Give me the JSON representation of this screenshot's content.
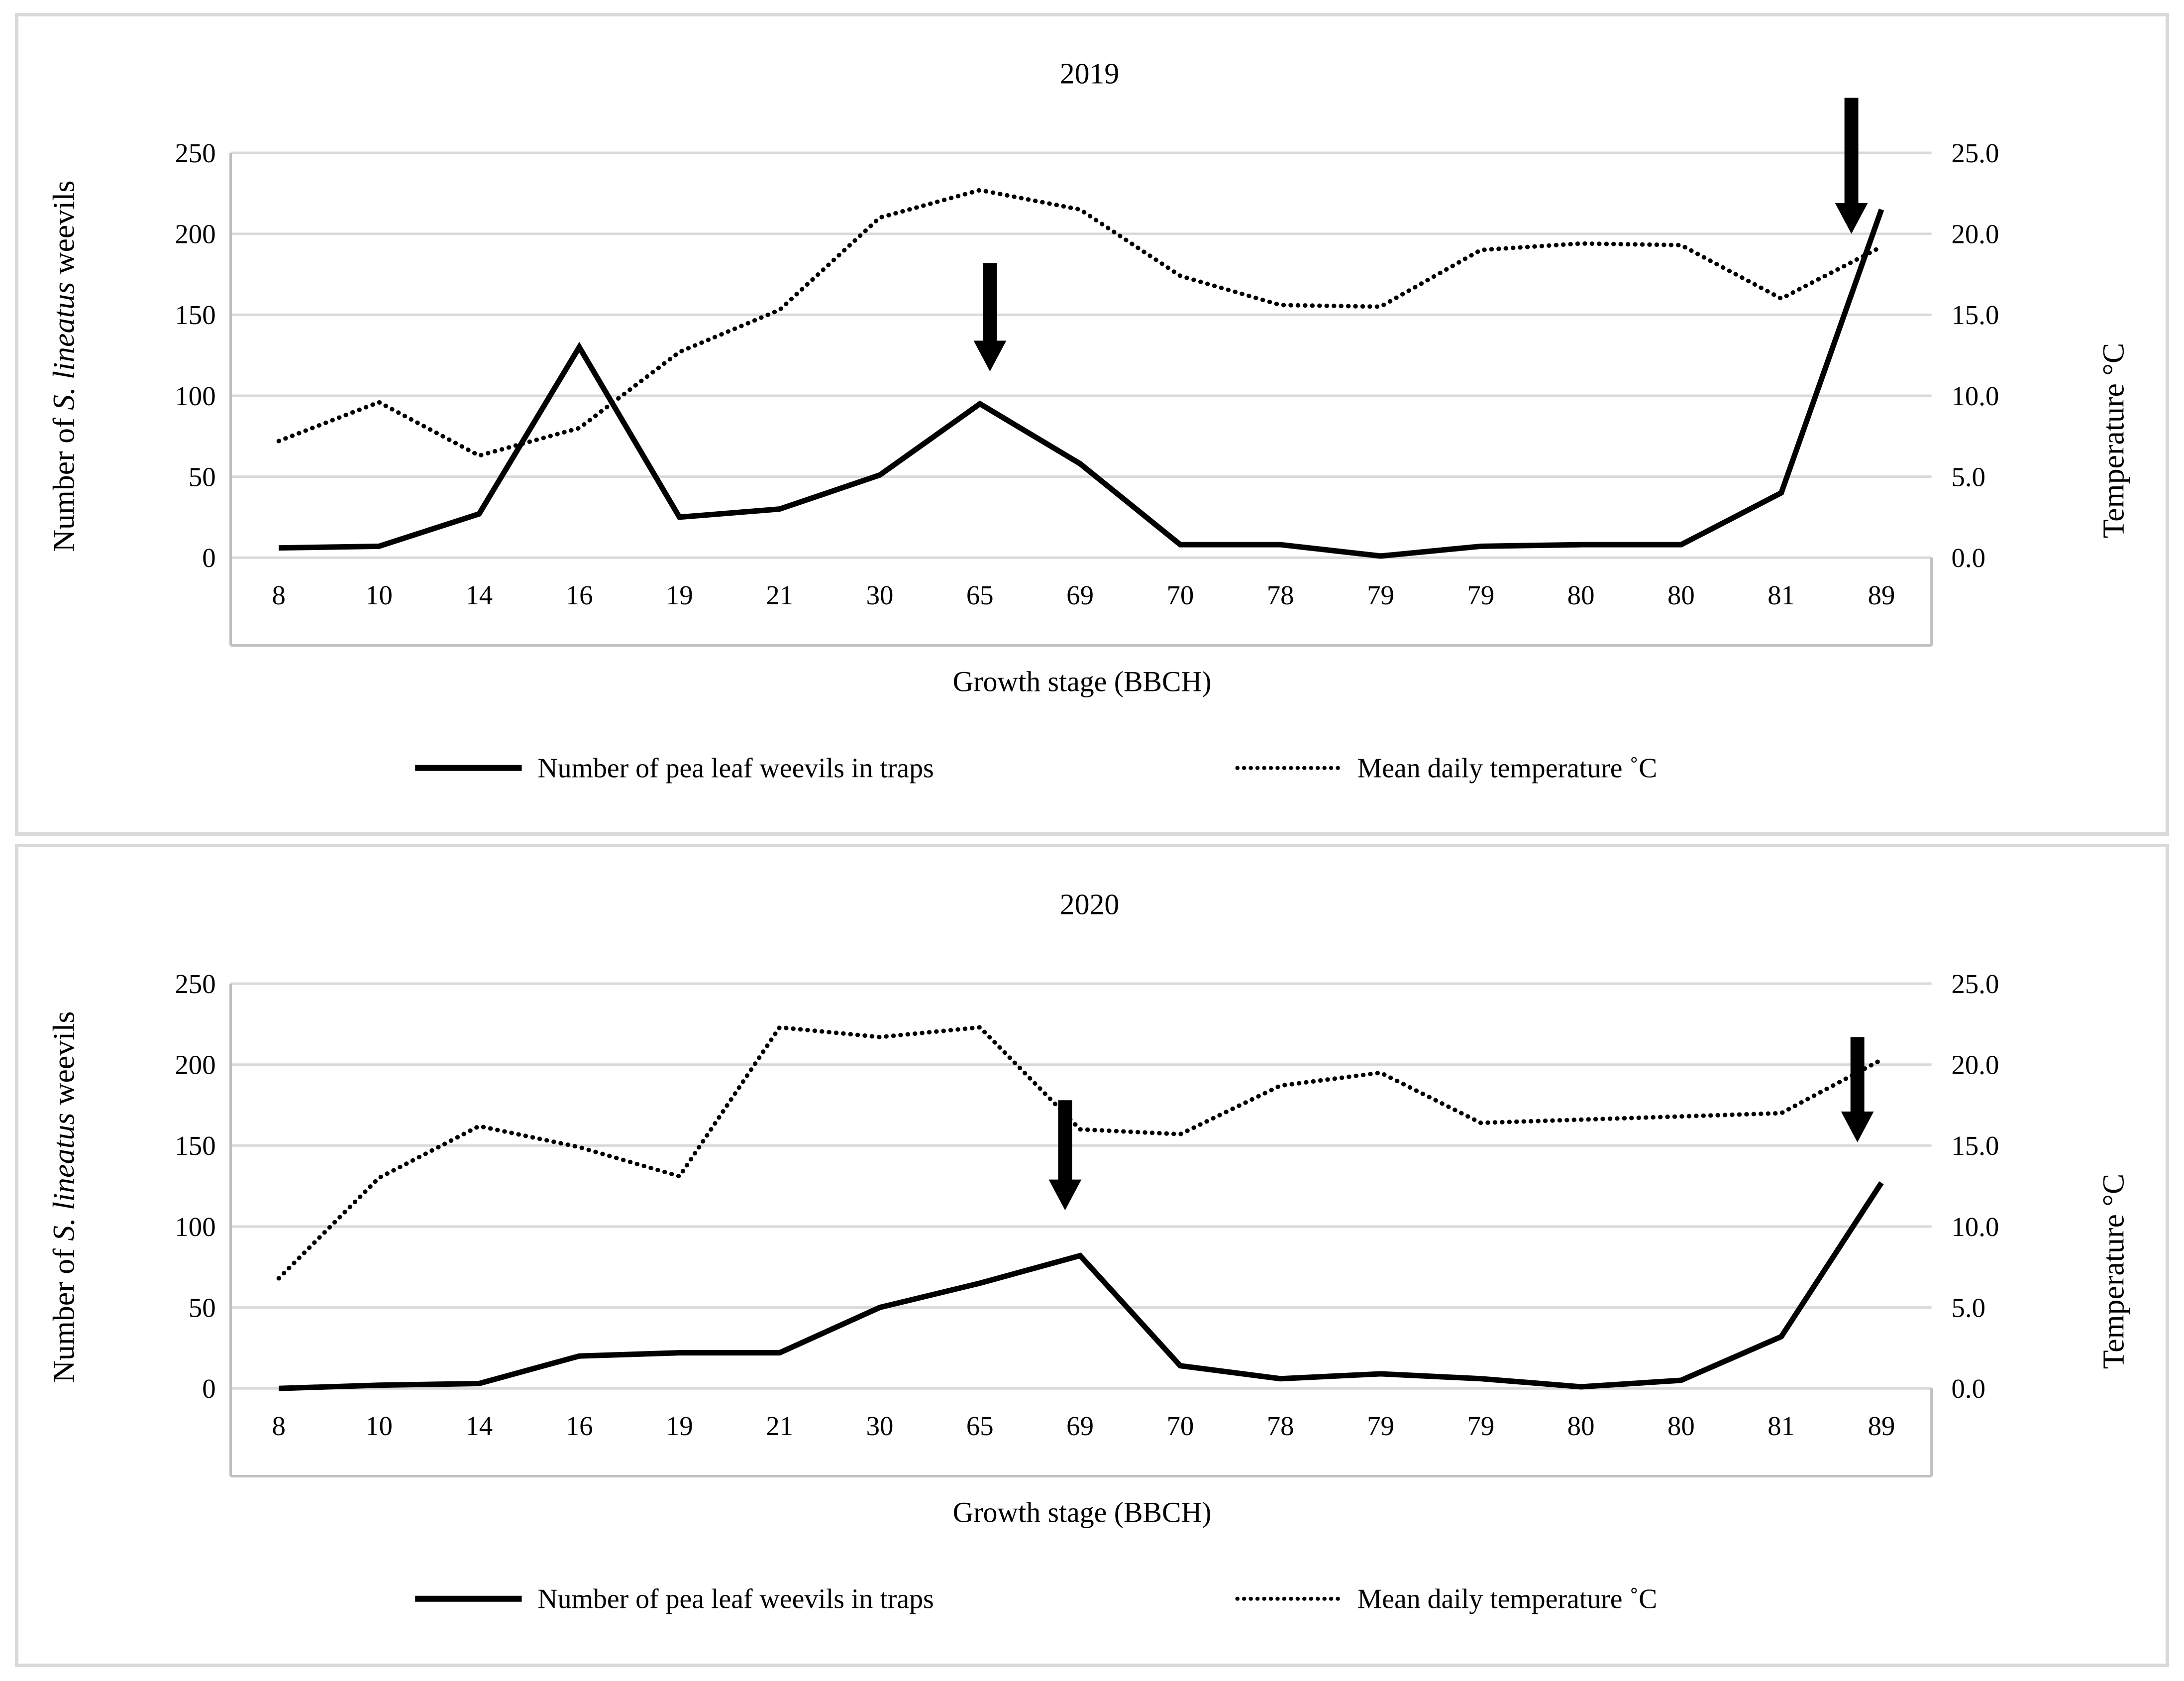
{
  "figure": {
    "colors": {
      "line": "#000000",
      "gridline": "#d9d9d9",
      "axis_box": "#bfbfbf",
      "panel_border": "#d9d9d9",
      "background": "#ffffff"
    }
  },
  "chart_data": [
    {
      "type": "line",
      "title": "2019",
      "categories": [
        "8",
        "10",
        "14",
        "16",
        "19",
        "21",
        "30",
        "65",
        "69",
        "70",
        "78",
        "79",
        "79",
        "80",
        "80",
        "81",
        "89"
      ],
      "xlabel": "Growth stage (BBCH)",
      "ylabel_left_parts": [
        "Number of ",
        "S. lineatus",
        " weevils"
      ],
      "ylabel_right": "Temperature °C",
      "y_left_ticks": [
        "250",
        "200",
        "150",
        "100",
        "50",
        "0"
      ],
      "y_right_ticks": [
        "25.0",
        "20.0",
        "15.0",
        "10.0",
        "5.0",
        "0.0"
      ],
      "ylim_left": [
        0,
        250
      ],
      "ylim_right": [
        0,
        25
      ],
      "grid": true,
      "legend_position": "bottom",
      "series": [
        {
          "name": "Number of pea leaf weevils in traps",
          "style": "solid",
          "axis": "left",
          "values": [
            6,
            7,
            27,
            130,
            25,
            30,
            51,
            95,
            58,
            8,
            8,
            1,
            7,
            8,
            8,
            40,
            215
          ]
        },
        {
          "name": "Mean daily temperature ˚C",
          "style": "dotted",
          "axis": "right",
          "values": [
            7.2,
            9.6,
            6.3,
            8.0,
            12.7,
            15.3,
            21.0,
            22.7,
            21.5,
            17.4,
            15.6,
            15.5,
            19.0,
            19.4,
            19.3,
            16.0,
            19.2
          ]
        }
      ],
      "annotations": [
        {
          "type": "down-arrow",
          "x_pos": 7.1,
          "top_value": 182,
          "tip_value": 115
        },
        {
          "type": "down-arrow",
          "x_pos": 15.7,
          "top_value": 284,
          "tip_value": 200
        }
      ]
    },
    {
      "type": "line",
      "title": "2020",
      "categories": [
        "8",
        "10",
        "14",
        "16",
        "19",
        "21",
        "30",
        "65",
        "69",
        "70",
        "78",
        "79",
        "79",
        "80",
        "80",
        "81",
        "89"
      ],
      "xlabel": "Growth stage (BBCH)",
      "ylabel_left_parts": [
        "Number of ",
        "S. lineatus",
        " weevils"
      ],
      "ylabel_right": "Temperature °C",
      "y_left_ticks": [
        "250",
        "200",
        "150",
        "100",
        "50",
        "0"
      ],
      "y_right_ticks": [
        "25.0",
        "20.0",
        "15.0",
        "10.0",
        "5.0",
        "0.0"
      ],
      "ylim_left": [
        0,
        250
      ],
      "ylim_right": [
        0,
        25
      ],
      "grid": true,
      "legend_position": "bottom",
      "series": [
        {
          "name": "Number of pea leaf weevils in traps",
          "style": "solid",
          "axis": "left",
          "values": [
            0,
            2,
            3,
            20,
            22,
            22,
            50,
            65,
            82,
            14,
            6,
            9,
            6,
            1,
            5,
            32,
            127
          ]
        },
        {
          "name": "Mean daily temperature ˚C",
          "style": "dotted",
          "axis": "right",
          "values": [
            6.8,
            13.0,
            16.2,
            14.9,
            13.1,
            22.3,
            21.7,
            22.3,
            16.0,
            15.7,
            18.7,
            19.5,
            16.4,
            16.6,
            16.8,
            17.0,
            20.3
          ]
        }
      ],
      "annotations": [
        {
          "type": "down-arrow",
          "x_pos": 7.85,
          "top_value": 178,
          "tip_value": 110
        },
        {
          "type": "down-arrow",
          "x_pos": 15.76,
          "top_value": 217,
          "tip_value": 152
        }
      ]
    }
  ]
}
